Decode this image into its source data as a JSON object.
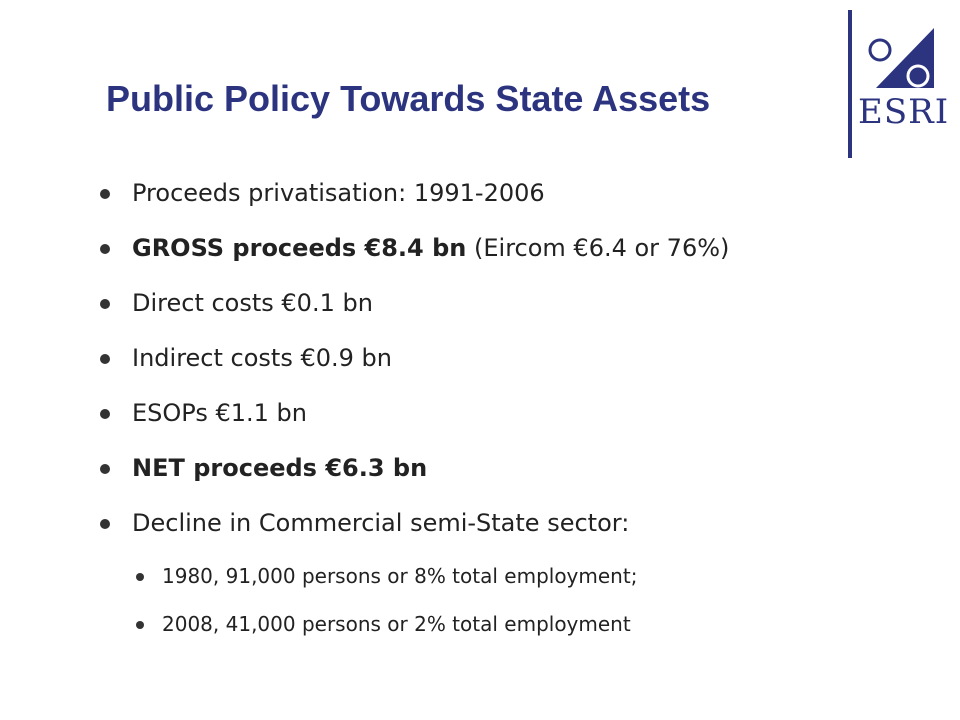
{
  "slide": {
    "title": "Public Policy Towards State Assets",
    "logo_text": "ESRI",
    "colors": {
      "title": "#2c3480",
      "logo": "#2c3480",
      "text": "#222222"
    },
    "bullets": [
      {
        "text": "Proceeds privatisation: 1991-2006"
      },
      {
        "bold": "GROSS proceeds €8.4 bn",
        "text": " (Eircom €6.4 or 76%)"
      },
      {
        "text": "Direct costs €0.1 bn"
      },
      {
        "text": "Indirect costs €0.9 bn"
      },
      {
        "text": "ESOPs €1.1 bn"
      },
      {
        "bold": "NET proceeds €6.3 bn"
      },
      {
        "text": "Decline in Commercial semi-State sector:"
      }
    ],
    "sub_bullets": [
      {
        "text": "1980, 91,000 persons or 8% total employment;"
      },
      {
        "text": "2008, 41,000 persons or 2% total employment"
      }
    ]
  }
}
